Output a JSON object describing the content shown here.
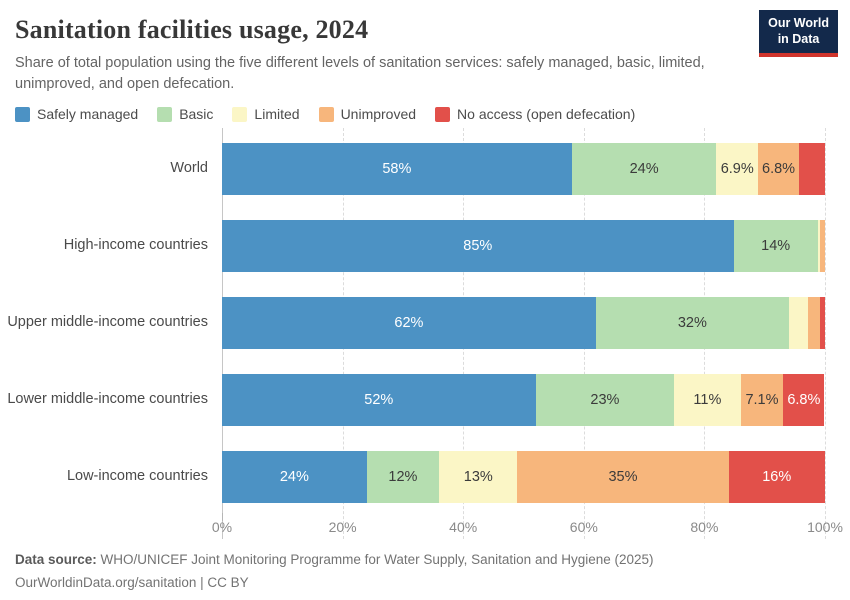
{
  "header": {
    "title": "Sanitation facilities usage, 2024",
    "subtitle": "Share of total population using the five different levels of sanitation services: safely managed, basic, limited, unimproved, and open defecation.",
    "logo": {
      "line1": "Our World",
      "line2": "in Data",
      "bg_color": "#13294b",
      "accent_color": "#d0342c"
    }
  },
  "chart_data": {
    "type": "bar",
    "stacked": true,
    "orientation": "horizontal",
    "xlim": [
      0,
      100
    ],
    "grid": "dashed-vertical-every-20pct",
    "legend_position": "top",
    "categories": [
      "World",
      "High-income countries",
      "Upper middle-income countries",
      "Lower middle-income countries",
      "Low-income countries"
    ],
    "series": [
      {
        "name": "Safely managed",
        "color": "#4c92c4",
        "text_color": "light",
        "values": [
          58,
          85,
          62,
          52,
          24
        ],
        "labels": [
          "58%",
          "85%",
          "62%",
          "52%",
          "24%"
        ]
      },
      {
        "name": "Basic",
        "color": "#b5deb0",
        "text_color": "dark",
        "values": [
          24,
          14,
          32,
          23,
          12
        ],
        "labels": [
          "24%",
          "14%",
          "32%",
          "23%",
          "12%"
        ]
      },
      {
        "name": "Limited",
        "color": "#fbf6c6",
        "text_color": "dark",
        "values": [
          6.9,
          0.3,
          3.2,
          11,
          13
        ],
        "labels": [
          "6.9%",
          "",
          "",
          "11%",
          "13%"
        ]
      },
      {
        "name": "Unimproved",
        "color": "#f7b67c",
        "text_color": "dark",
        "values": [
          6.8,
          0.9,
          1.9,
          7.1,
          35
        ],
        "labels": [
          "6.8%",
          "",
          "",
          "7.1%",
          "35%"
        ]
      },
      {
        "name": "No access (open defecation)",
        "color": "#e2504a",
        "text_color": "light",
        "values": [
          4.3,
          0,
          0.9,
          6.8,
          16
        ],
        "labels": [
          "",
          "",
          "",
          "6.8%",
          "16%"
        ]
      }
    ],
    "x_ticks": [
      "0%",
      "20%",
      "40%",
      "60%",
      "80%",
      "100%"
    ]
  },
  "footer": {
    "source_label": "Data source:",
    "source_text": "WHO/UNICEF Joint Monitoring Programme for Water Supply, Sanitation and Hygiene (2025)",
    "license": "OurWorldinData.org/sanitation | CC BY"
  }
}
